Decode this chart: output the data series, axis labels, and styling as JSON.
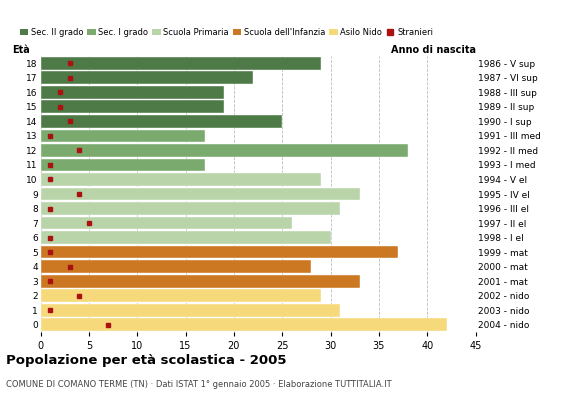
{
  "ages": [
    0,
    1,
    2,
    3,
    4,
    5,
    6,
    7,
    8,
    9,
    10,
    11,
    12,
    13,
    14,
    15,
    16,
    17,
    18
  ],
  "years": [
    "2004 - nido",
    "2003 - nido",
    "2002 - nido",
    "2001 - mat",
    "2000 - mat",
    "1999 - mat",
    "1998 - I el",
    "1997 - II el",
    "1996 - III el",
    "1995 - IV el",
    "1994 - V el",
    "1993 - I med",
    "1992 - II med",
    "1991 - III med",
    "1990 - I sup",
    "1989 - II sup",
    "1988 - III sup",
    "1987 - VI sup",
    "1986 - V sup"
  ],
  "bar_values": [
    42,
    31,
    29,
    33,
    28,
    37,
    30,
    26,
    31,
    33,
    29,
    17,
    38,
    17,
    25,
    19,
    19,
    22,
    29
  ],
  "bar_colors": [
    "#f5d97a",
    "#f5d97a",
    "#f5d97a",
    "#cc7722",
    "#cc7722",
    "#cc7722",
    "#b8d4a8",
    "#b8d4a8",
    "#b8d4a8",
    "#b8d4a8",
    "#b8d4a8",
    "#7aaa6e",
    "#7aaa6e",
    "#7aaa6e",
    "#4e7a47",
    "#4e7a47",
    "#4e7a47",
    "#4e7a47",
    "#4e7a47"
  ],
  "stranieri_values": [
    7,
    1,
    4,
    1,
    3,
    1,
    1,
    5,
    1,
    4,
    1,
    1,
    4,
    1,
    3,
    2,
    2,
    3,
    3
  ],
  "legend_labels": [
    "Sec. II grado",
    "Sec. I grado",
    "Scuola Primaria",
    "Scuola dell'Infanzia",
    "Asilo Nido",
    "Stranieri"
  ],
  "legend_colors": [
    "#4e7a47",
    "#7aaa6e",
    "#b8d4a8",
    "#cc7722",
    "#f5d97a",
    "#aa1111"
  ],
  "stranieri_color": "#aa1111",
  "title": "Popolazione per età scolastica - 2005",
  "subtitle": "COMUNE DI COMANO TERME (TN) · Dati ISTAT 1° gennaio 2005 · Elaborazione TUTTITALIA.IT",
  "xlabel_age": "Età",
  "xlabel_year": "Anno di nascita",
  "xlim": [
    0,
    45
  ],
  "xticks": [
    0,
    5,
    10,
    15,
    20,
    25,
    30,
    35,
    40,
    45
  ],
  "background_color": "#ffffff",
  "grid_color": "#bbbbbb"
}
